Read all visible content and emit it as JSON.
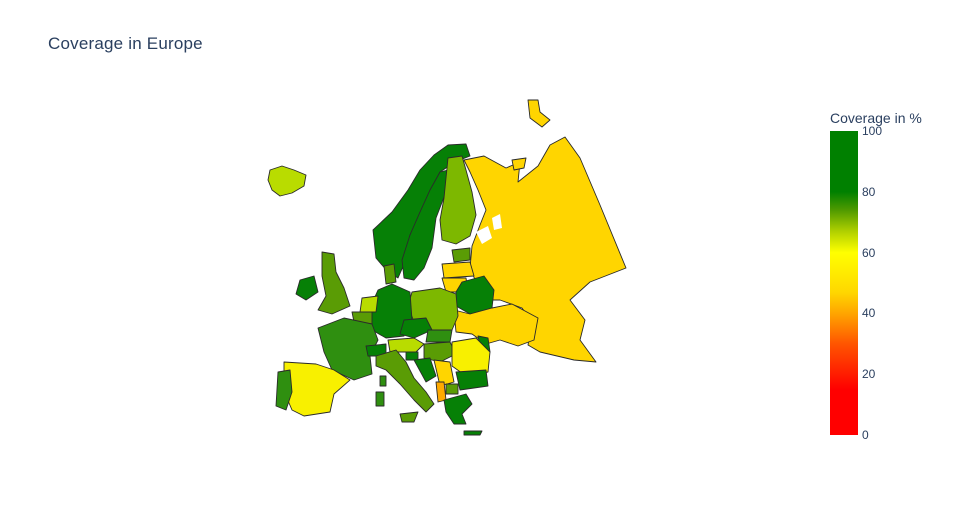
{
  "title": "Coverage in Europe",
  "colorbar": {
    "title": "Coverage in %",
    "ticks": [
      "100",
      "80",
      "60",
      "40",
      "20",
      "0"
    ],
    "colorscale": [
      "#ff0000",
      "#ffa500",
      "#ffff00",
      "#008000"
    ]
  },
  "map": {
    "region": "Europe",
    "colors": {
      "dark_green": "#068006",
      "green": "#2f8f10",
      "olive_green": "#5a9c05",
      "yellow_green": "#7db800",
      "lime": "#b9dc00",
      "yellow": "#f8f000",
      "gold": "#ffd500",
      "orange": "#ffaa00"
    }
  }
}
